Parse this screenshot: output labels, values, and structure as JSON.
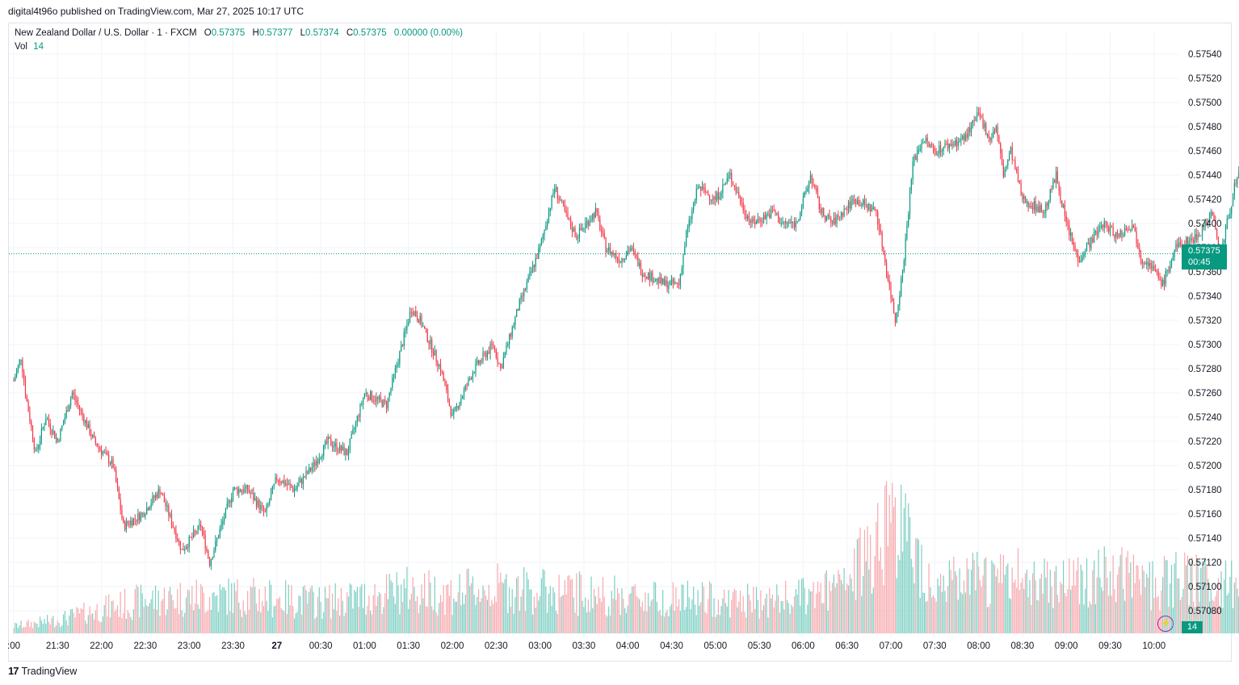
{
  "header": {
    "caption": "digital4t96o published on TradingView.com, Mar 27, 2025 10:17 UTC"
  },
  "legend": {
    "symbol": "New Zealand Dollar / U.S. Dollar · 1 · FXCM",
    "o_key": "O",
    "o_val": "0.57375",
    "h_key": "H",
    "h_val": "0.57377",
    "l_key": "L",
    "l_val": "0.57374",
    "c_key": "C",
    "c_val": "0.57375",
    "change": "0.00000 (0.00%)",
    "vol_key": "Vol",
    "vol_val": "14"
  },
  "price_label": {
    "price": "0.57375",
    "countdown": "00:45"
  },
  "vol_label": "14",
  "footer": {
    "brand": "TradingView"
  },
  "colors": {
    "up": "#089981",
    "down": "#f23645",
    "up_vol": "#7ccfc2",
    "down_vol": "#f7a9ae",
    "grid": "#f0f3fa"
  },
  "chart_data": {
    "type": "candlestick",
    "title": "New Zealand Dollar / U.S. Dollar · 1 · FXCM",
    "xlabel": "",
    "ylabel": "",
    "ylim": [
      0.5707,
      0.5755
    ],
    "y_ticks": [
      "0.57540",
      "0.57520",
      "0.57500",
      "0.57480",
      "0.57460",
      "0.57440",
      "0.57420",
      "0.57400",
      "0.57380",
      "0.57360",
      "0.57340",
      "0.57320",
      "0.57300",
      "0.57280",
      "0.57260",
      "0.57240",
      "0.57220",
      "0.57200",
      "0.57180",
      "0.57160",
      "0.57140",
      "0.57120",
      "0.57100",
      "0.57080"
    ],
    "x_ticks": [
      ":00",
      "21:30",
      "22:00",
      "22:30",
      "23:00",
      "23:30",
      "27",
      "00:30",
      "01:00",
      "01:30",
      "02:00",
      "02:30",
      "03:00",
      "03:30",
      "04:00",
      "04:30",
      "05:00",
      "05:30",
      "06:00",
      "06:30",
      "07:00",
      "07:30",
      "08:00",
      "08:30",
      "09:00",
      "09:30",
      "10:00"
    ],
    "last_price": 0.57375,
    "price_path": {
      "x": [
        "21:00",
        "21:05",
        "21:08",
        "21:15",
        "21:22",
        "21:30",
        "21:40",
        "21:55",
        "22:08",
        "22:15",
        "22:28",
        "22:40",
        "22:55",
        "23:08",
        "23:14",
        "23:30",
        "23:40",
        "23:52",
        "24:00",
        "24:12",
        "24:25",
        "24:35",
        "24:48",
        "25:00",
        "25:15",
        "25:32",
        "25:38",
        "25:52",
        "26:00",
        "26:15",
        "26:28",
        "26:33",
        "26:45",
        "27:00",
        "27:10",
        "27:20",
        "27:25",
        "27:38",
        "27:45",
        "27:55",
        "28:02",
        "28:10",
        "28:25",
        "28:35",
        "28:40",
        "28:48",
        "29:00",
        "29:10",
        "29:20",
        "29:25",
        "29:40",
        "29:45",
        "29:55",
        "30:03",
        "30:05",
        "30:12",
        "30:20",
        "30:35",
        "30:50",
        "31:03",
        "31:08",
        "31:15",
        "31:22",
        "31:30",
        "31:50",
        "32:00",
        "32:08",
        "32:12",
        "32:17",
        "32:22",
        "32:30",
        "32:45",
        "32:53",
        "33:00",
        "33:08",
        "33:25",
        "33:35",
        "33:45",
        "33:52",
        "33:55",
        "34:06",
        "34:15",
        "34:30",
        "34:40",
        "34:45",
        "34:55",
        "35:05",
        "35:12",
        "35:25",
        "35:35",
        "35:55",
        "36:00",
        "36:10",
        "36:20",
        "36:30",
        "36:40",
        "36:45",
        "36:50",
        "37:00",
        "37:07",
        "37:10"
      ],
      "y": [
        0.5727,
        0.5729,
        0.5726,
        0.5721,
        0.5724,
        0.5722,
        0.5726,
        0.5722,
        0.572,
        0.5715,
        0.5716,
        0.5718,
        0.5713,
        0.5715,
        0.5712,
        0.5718,
        0.5718,
        0.5716,
        0.5719,
        0.5718,
        0.572,
        0.5722,
        0.5721,
        0.5726,
        0.5725,
        0.5733,
        0.5732,
        0.5728,
        0.5724,
        0.5728,
        0.573,
        0.5728,
        0.5733,
        0.5738,
        0.5743,
        0.574,
        0.5739,
        0.5741,
        0.5738,
        0.5737,
        0.5738,
        0.5736,
        0.5735,
        0.5735,
        0.5739,
        0.5743,
        0.5742,
        0.5744,
        0.5741,
        0.574,
        0.5741,
        0.574,
        0.574,
        0.5743,
        0.5744,
        0.5741,
        0.574,
        0.5742,
        0.5741,
        0.5732,
        0.5736,
        0.5745,
        0.5747,
        0.5746,
        0.5747,
        0.5749,
        0.5747,
        0.5748,
        0.5744,
        0.5746,
        0.5742,
        0.5741,
        0.5744,
        0.574,
        0.5737,
        0.574,
        0.5739,
        0.574,
        0.5737,
        0.5737,
        0.5735,
        0.5738,
        0.5739,
        0.5741,
        0.5737,
        0.5743,
        0.5746,
        0.575,
        0.5748,
        0.5744,
        0.5741,
        0.5741,
        0.574,
        0.574,
        0.5739,
        0.5739,
        0.574,
        0.5741,
        0.5739,
        0.5738,
        0.5737
      ]
    },
    "volume_ylim": [
      0,
      200
    ],
    "volume_marks": [
      {
        "x": "21:00",
        "v": 12
      },
      {
        "x": "21:30",
        "v": 22
      },
      {
        "x": "22:00",
        "v": 40
      },
      {
        "x": "22:30",
        "v": 55
      },
      {
        "x": "23:00",
        "v": 60
      },
      {
        "x": "23:30",
        "v": 62
      },
      {
        "x": "24:00",
        "v": 58
      },
      {
        "x": "24:30",
        "v": 52
      },
      {
        "x": "25:00",
        "v": 60
      },
      {
        "x": "25:30",
        "v": 72
      },
      {
        "x": "26:00",
        "v": 66
      },
      {
        "x": "26:30",
        "v": 75
      },
      {
        "x": "27:00",
        "v": 70
      },
      {
        "x": "27:30",
        "v": 66
      },
      {
        "x": "28:00",
        "v": 60
      },
      {
        "x": "28:30",
        "v": 58
      },
      {
        "x": "29:00",
        "v": 55
      },
      {
        "x": "29:30",
        "v": 52
      },
      {
        "x": "30:00",
        "v": 60
      },
      {
        "x": "30:30",
        "v": 78
      },
      {
        "x": "31:00",
        "v": 200
      },
      {
        "x": "31:30",
        "v": 80
      },
      {
        "x": "32:00",
        "v": 88
      },
      {
        "x": "32:30",
        "v": 92
      },
      {
        "x": "33:00",
        "v": 90
      },
      {
        "x": "33:30",
        "v": 95
      },
      {
        "x": "34:00",
        "v": 85
      },
      {
        "x": "34:30",
        "v": 88
      },
      {
        "x": "35:00",
        "v": 80
      },
      {
        "x": "35:30",
        "v": 70
      },
      {
        "x": "36:00",
        "v": 68
      },
      {
        "x": "36:30",
        "v": 62
      },
      {
        "x": "37:10",
        "v": 14
      }
    ]
  }
}
